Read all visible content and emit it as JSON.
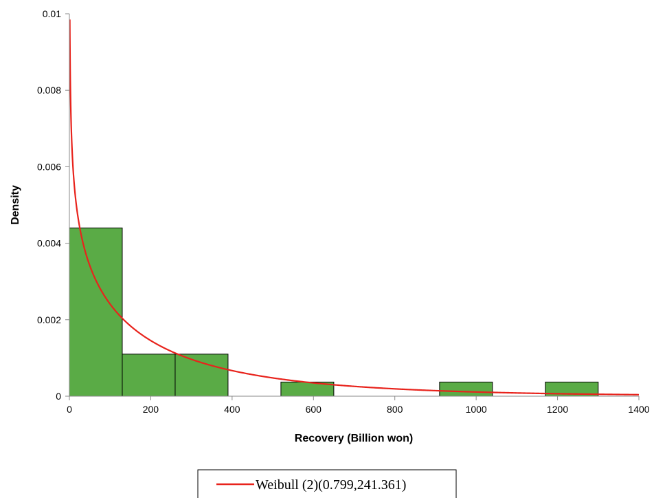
{
  "chart_data": {
    "type": "bar",
    "title": "",
    "xlabel": "Recovery (Billion won)",
    "ylabel": "Density",
    "xlim": [
      0,
      1400
    ],
    "ylim": [
      0,
      0.01
    ],
    "x_ticks": [
      "0",
      "200",
      "400",
      "600",
      "800",
      "1000",
      "1200",
      "1400"
    ],
    "y_ticks": [
      "0",
      "0.002",
      "0.004",
      "0.006",
      "0.008",
      "0.01"
    ],
    "grid": false,
    "legend_position": "bottom",
    "bin_width": 130,
    "histogram": {
      "bin_starts": [
        0,
        130,
        260,
        390,
        520,
        650,
        780,
        910,
        1040,
        1170
      ],
      "densities": [
        0.0044,
        0.0011,
        0.0011,
        0,
        0.00037,
        0,
        0,
        0.00037,
        0,
        0.00037
      ],
      "fill_color": "#5aab46",
      "edge_color": "#000000"
    },
    "series": [
      {
        "name": "Weibull (2)(0.799,241.361)",
        "type": "line",
        "distribution": "Weibull",
        "shape": 0.799,
        "scale": 241.361,
        "color": "#e8231c"
      }
    ],
    "colors": {
      "axis": "#888888"
    }
  }
}
